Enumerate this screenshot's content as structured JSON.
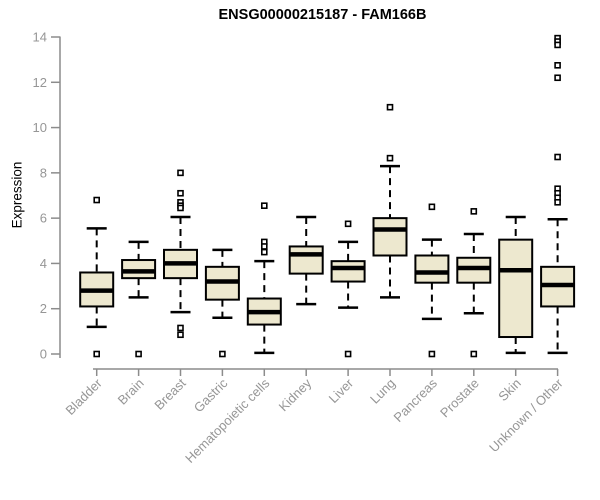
{
  "chart_data": {
    "type": "boxplot",
    "title": "ENSG00000215187 - FAM166B",
    "ylabel": "Expression",
    "xlabel": "",
    "ylim": [
      0,
      14
    ],
    "yticks": [
      0,
      2,
      4,
      6,
      8,
      10,
      12,
      14
    ],
    "grid": false,
    "legend": "none",
    "categories": [
      "Bladder",
      "Brain",
      "Breast",
      "Gastric",
      "Hematopoietic cells",
      "Kidney",
      "Liver",
      "Lung",
      "Pancreas",
      "Prostate",
      "Skin",
      "Unknown / Other"
    ],
    "series": [
      {
        "name": "Bladder",
        "whisker_low": 1.2,
        "q1": 2.1,
        "median": 2.8,
        "q3": 3.6,
        "whisker_high": 5.55,
        "outliers": [
          6.8,
          0
        ]
      },
      {
        "name": "Brain",
        "whisker_low": 2.5,
        "q1": 3.35,
        "median": 3.65,
        "q3": 4.15,
        "whisker_high": 4.95,
        "outliers": [
          0
        ]
      },
      {
        "name": "Breast",
        "whisker_low": 1.85,
        "q1": 3.35,
        "median": 4.0,
        "q3": 4.6,
        "whisker_high": 6.05,
        "outliers": [
          8.0,
          7.1,
          6.7,
          6.55,
          6.45,
          1.15,
          0.85
        ]
      },
      {
        "name": "Gastric",
        "whisker_low": 1.6,
        "q1": 2.4,
        "median": 3.2,
        "q3": 3.85,
        "whisker_high": 4.6,
        "outliers": [
          0
        ]
      },
      {
        "name": "Hematopoietic cells",
        "whisker_low": 0.05,
        "q1": 1.3,
        "median": 1.85,
        "q3": 2.45,
        "whisker_high": 4.1,
        "outliers": [
          6.55,
          4.95,
          4.75,
          4.5
        ]
      },
      {
        "name": "Kidney",
        "whisker_low": 2.2,
        "q1": 3.55,
        "median": 4.4,
        "q3": 4.75,
        "whisker_high": 6.05,
        "outliers": []
      },
      {
        "name": "Liver",
        "whisker_low": 2.05,
        "q1": 3.2,
        "median": 3.8,
        "q3": 4.1,
        "whisker_high": 4.95,
        "outliers": [
          5.75,
          0
        ]
      },
      {
        "name": "Lung",
        "whisker_low": 2.5,
        "q1": 4.35,
        "median": 5.5,
        "q3": 6.0,
        "whisker_high": 8.3,
        "outliers": [
          10.9,
          8.65
        ]
      },
      {
        "name": "Pancreas",
        "whisker_low": 1.55,
        "q1": 3.15,
        "median": 3.6,
        "q3": 4.35,
        "whisker_high": 5.05,
        "outliers": [
          6.5,
          0
        ]
      },
      {
        "name": "Prostate",
        "whisker_low": 1.8,
        "q1": 3.15,
        "median": 3.8,
        "q3": 4.25,
        "whisker_high": 5.3,
        "outliers": [
          6.3,
          0
        ]
      },
      {
        "name": "Skin",
        "whisker_low": 0.05,
        "q1": 0.75,
        "median": 3.7,
        "q3": 5.05,
        "whisker_high": 6.05,
        "outliers": []
      },
      {
        "name": "Unknown / Other",
        "whisker_low": 0.05,
        "q1": 2.1,
        "median": 3.05,
        "q3": 3.85,
        "whisker_high": 5.95,
        "outliers": [
          13.95,
          13.8,
          13.65,
          12.75,
          12.2,
          8.7,
          7.3,
          7.1,
          6.9,
          6.7
        ]
      }
    ],
    "colors": {
      "box_fill": "#EDE8CF",
      "box_border": "#000000",
      "median": "#000000",
      "whisker": "#000000",
      "outlier_fill": "#FFFFFF",
      "outlier_border": "#000000",
      "axis": "#8C8C8C",
      "tick_label": "#969696",
      "title": "#000000",
      "background": "#FFFFFF"
    }
  }
}
